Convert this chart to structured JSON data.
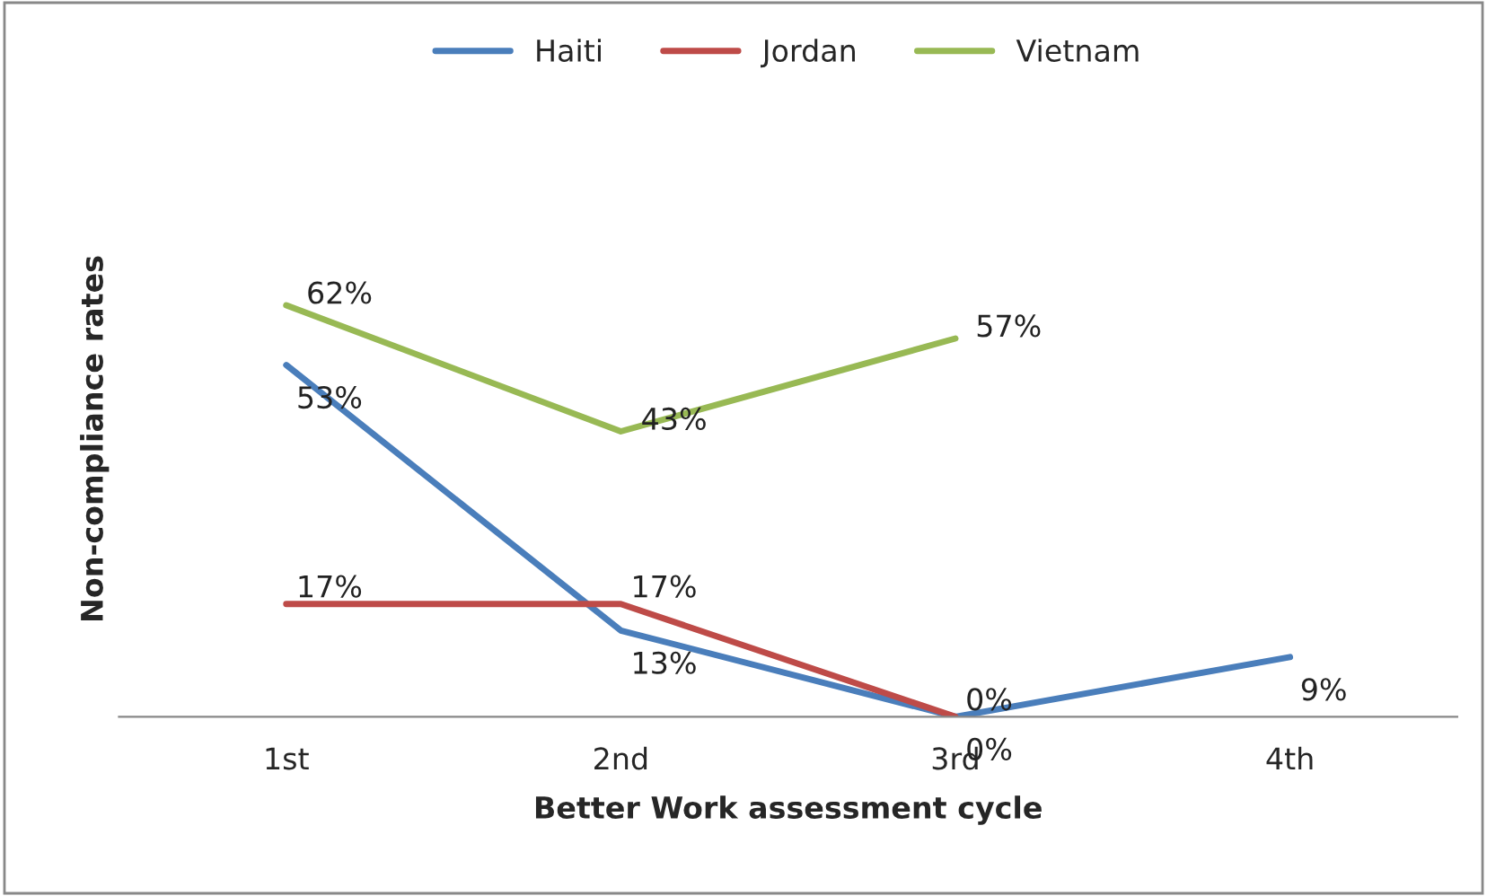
{
  "chart_data": {
    "type": "line",
    "xlabel": "Better Work assessment cycle",
    "ylabel": "Non-compliance rates",
    "categories": [
      "1st",
      "2nd",
      "3rd",
      "4th"
    ],
    "series": [
      {
        "name": "Haiti",
        "color": "#4a7ebb",
        "values": [
          53,
          13,
          0,
          9
        ],
        "value_labels": [
          "53%",
          "13%",
          "0%",
          "9%"
        ]
      },
      {
        "name": "Jordan",
        "color": "#be4b48",
        "values": [
          17,
          17,
          0,
          null
        ],
        "value_labels": [
          "17%",
          "17%",
          "0%",
          null
        ]
      },
      {
        "name": "Vietnam",
        "color": "#98b954",
        "values": [
          62,
          43,
          57,
          null
        ],
        "value_labels": [
          "62%",
          "43%",
          "57%",
          null
        ]
      }
    ],
    "legend": "top",
    "grid": false,
    "marker": "none",
    "line_style": "solid"
  }
}
